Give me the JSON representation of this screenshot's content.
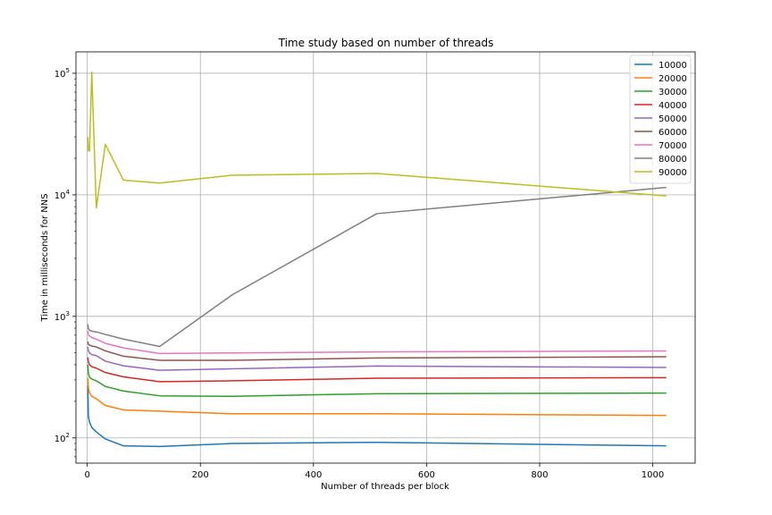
{
  "chart_data": {
    "type": "line",
    "title": "Time study based on number of threads",
    "xlabel": "Number of threads per block",
    "ylabel": "Time in milliseconds for NNS",
    "xlim": [
      -20,
      1075
    ],
    "ylim": [
      62,
      150000
    ],
    "yscale": "log",
    "grid": true,
    "legend_position": "top-right",
    "x_ticks": [
      0,
      200,
      400,
      600,
      800,
      1000
    ],
    "y_ticks": [
      {
        "value": 100,
        "base": "10",
        "exp": "2"
      },
      {
        "value": 1000,
        "base": "10",
        "exp": "3"
      },
      {
        "value": 10000,
        "base": "10",
        "exp": "4"
      },
      {
        "value": 100000,
        "base": "10",
        "exp": "5"
      }
    ],
    "x": [
      1,
      2,
      4,
      8,
      16,
      32,
      64,
      128,
      256,
      512,
      1024
    ],
    "series": [
      {
        "name": "10000",
        "color": "#1f77b4",
        "values": [
          270,
          150,
          135,
          122,
          112,
          98,
          86,
          85,
          90,
          92,
          86
        ]
      },
      {
        "name": "20000",
        "color": "#ff7f0e",
        "values": [
          310,
          260,
          235,
          220,
          210,
          185,
          170,
          166,
          158,
          158,
          153
        ]
      },
      {
        "name": "30000",
        "color": "#2ca02c",
        "values": [
          400,
          340,
          315,
          305,
          295,
          265,
          243,
          222,
          220,
          231,
          234
        ]
      },
      {
        "name": "40000",
        "color": "#d62728",
        "values": [
          460,
          420,
          400,
          385,
          375,
          345,
          318,
          290,
          295,
          310,
          313
        ]
      },
      {
        "name": "50000",
        "color": "#9467bd",
        "values": [
          560,
          520,
          500,
          485,
          475,
          428,
          392,
          360,
          370,
          390,
          380
        ]
      },
      {
        "name": "60000",
        "color": "#8c564b",
        "values": [
          620,
          590,
          580,
          570,
          560,
          520,
          470,
          435,
          435,
          455,
          465
        ]
      },
      {
        "name": "70000",
        "color": "#e377c2",
        "values": [
          760,
          710,
          690,
          670,
          650,
          600,
          550,
          495,
          500,
          510,
          520
        ]
      },
      {
        "name": "80000",
        "color": "#7f7f7f",
        "values": [
          860,
          790,
          770,
          755,
          745,
          710,
          650,
          565,
          1500,
          7000,
          11500
        ]
      },
      {
        "name": "90000",
        "color": "#bcbd22",
        "values": [
          30000,
          23000,
          23000,
          102000,
          7800,
          26000,
          13200,
          12500,
          14500,
          15000,
          9800
        ]
      }
    ]
  }
}
